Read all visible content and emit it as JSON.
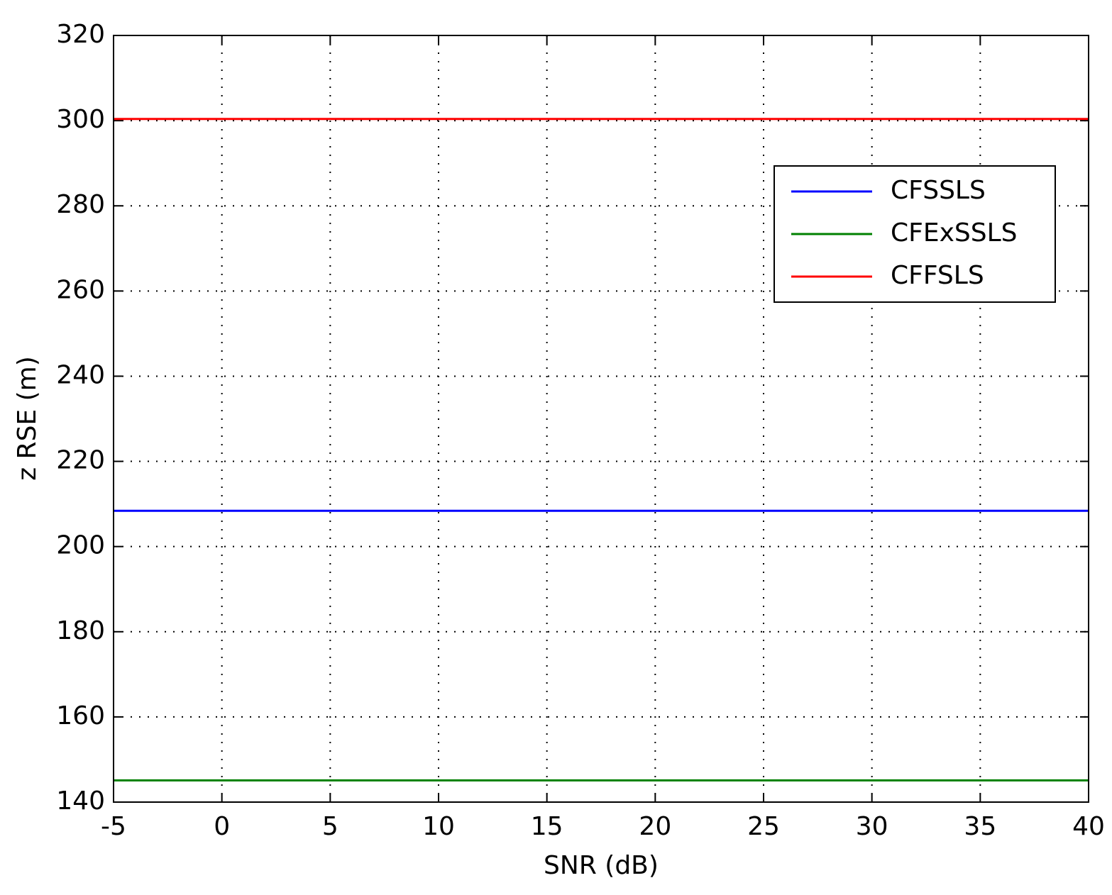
{
  "chart_data": {
    "type": "line",
    "x_label": "SNR (dB)",
    "y_label": "z RSE (m)",
    "x": [
      -5,
      0,
      5,
      10,
      15,
      20,
      25,
      30,
      35,
      40
    ],
    "series": [
      {
        "name": "CFSSLS",
        "color": "#0000ff",
        "values": [
          208.4,
          208.4,
          208.4,
          208.4,
          208.4,
          208.4,
          208.4,
          208.4,
          208.4,
          208.4
        ]
      },
      {
        "name": "CFExSSLS",
        "color": "#008000",
        "values": [
          145.1,
          145.1,
          145.1,
          145.1,
          145.1,
          145.1,
          145.1,
          145.1,
          145.1,
          145.1
        ]
      },
      {
        "name": "CFFSLS",
        "color": "#ff0000",
        "values": [
          300.4,
          300.4,
          300.4,
          300.4,
          300.4,
          300.4,
          300.4,
          300.4,
          300.4,
          300.4
        ]
      }
    ],
    "xlim": [
      -5,
      40
    ],
    "xticks": [
      -5,
      0,
      5,
      10,
      15,
      20,
      25,
      30,
      35,
      40
    ],
    "ylim": [
      140,
      320
    ],
    "yticks": [
      140,
      160,
      180,
      200,
      220,
      240,
      260,
      280,
      300,
      320
    ],
    "grid": true,
    "legend": "northeast"
  }
}
